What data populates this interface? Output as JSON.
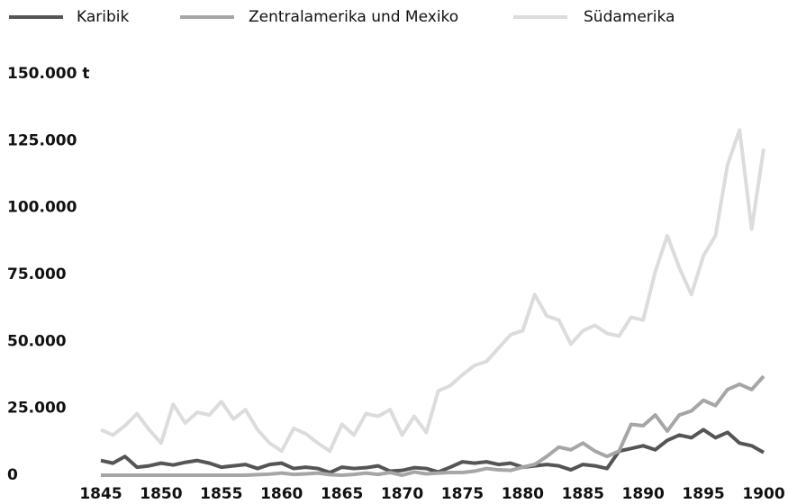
{
  "chart_data": {
    "type": "line",
    "x": [
      1845,
      1846,
      1847,
      1848,
      1849,
      1850,
      1851,
      1852,
      1853,
      1854,
      1855,
      1856,
      1857,
      1858,
      1859,
      1860,
      1861,
      1862,
      1863,
      1864,
      1865,
      1866,
      1867,
      1868,
      1869,
      1870,
      1871,
      1872,
      1873,
      1874,
      1875,
      1876,
      1877,
      1878,
      1879,
      1880,
      1881,
      1882,
      1883,
      1884,
      1885,
      1886,
      1887,
      1888,
      1889,
      1890,
      1891,
      1892,
      1893,
      1894,
      1895,
      1896,
      1897,
      1898,
      1899,
      1900
    ],
    "series": [
      {
        "name": "Karibik",
        "color": "#555555",
        "values": [
          5500,
          4500,
          7000,
          3000,
          3500,
          4500,
          3800,
          4800,
          5500,
          4500,
          3000,
          3500,
          4000,
          2500,
          4000,
          4500,
          2500,
          3000,
          2500,
          1000,
          3000,
          2500,
          2800,
          3500,
          1500,
          1800,
          2800,
          2500,
          1200,
          3000,
          5000,
          4500,
          5000,
          4000,
          4500,
          3000,
          3500,
          4000,
          3500,
          2000,
          4000,
          3500,
          2500,
          9000,
          10000,
          11000,
          9500,
          13000,
          15000,
          14000,
          17000,
          14000,
          16000,
          12000,
          11000,
          8500
        ]
      },
      {
        "name": "Zentralamerika und Mexiko",
        "color": "#a6a6a6",
        "values": [
          0,
          0,
          0,
          0,
          0,
          0,
          0,
          0,
          0,
          0,
          0,
          0,
          0,
          200,
          400,
          800,
          300,
          500,
          800,
          200,
          0,
          300,
          800,
          300,
          1000,
          0,
          1200,
          500,
          800,
          1000,
          1000,
          1500,
          2500,
          2000,
          1800,
          3000,
          4000,
          7000,
          10500,
          9500,
          12000,
          9000,
          7000,
          9000,
          19000,
          18500,
          22500,
          16500,
          22500,
          24000,
          28000,
          26000,
          32000,
          34000,
          32000,
          37000
        ]
      },
      {
        "name": "Südamerika",
        "color": "#dcdcdc",
        "values": [
          17000,
          15000,
          18500,
          23000,
          17000,
          12000,
          26500,
          19500,
          23500,
          22500,
          27500,
          21000,
          24500,
          17000,
          12000,
          9000,
          17500,
          15500,
          12000,
          9000,
          19000,
          15000,
          23000,
          22000,
          24500,
          15000,
          22000,
          16000,
          31500,
          33500,
          37500,
          41000,
          42500,
          47500,
          52500,
          54000,
          67500,
          59500,
          58000,
          49000,
          54000,
          56000,
          53000,
          52000,
          59000,
          58000,
          76000,
          89500,
          77500,
          67500,
          82000,
          89500,
          116000,
          129000,
          92000,
          122000
        ]
      }
    ],
    "xlim": [
      1845,
      1900
    ],
    "xticks": [
      1845,
      1850,
      1855,
      1860,
      1865,
      1870,
      1875,
      1880,
      1885,
      1890,
      1895,
      1900
    ],
    "ylim": [
      0,
      150000
    ],
    "yticks": [
      0,
      {
        "value": 25000,
        "label": "25.000"
      },
      {
        "value": 50000,
        "label": "50.000"
      },
      {
        "value": 75000,
        "label": "75.000"
      },
      {
        "value": 100000,
        "label": "100.000"
      },
      {
        "value": 125000,
        "label": "125.000"
      },
      {
        "value": 150000,
        "label": "150.000 t"
      }
    ],
    "grid": false
  }
}
